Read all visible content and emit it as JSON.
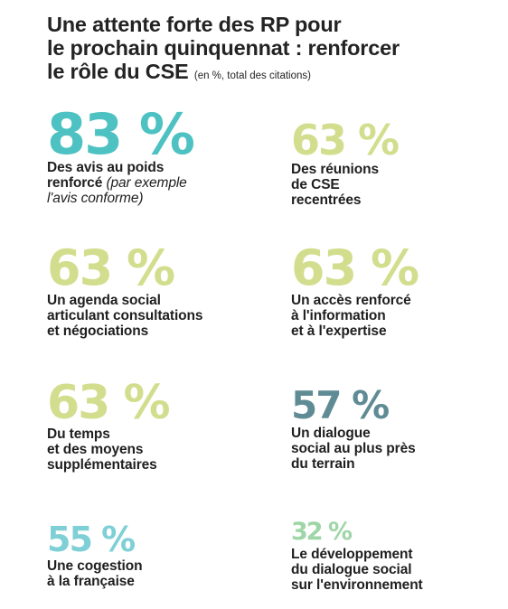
{
  "title": {
    "line1": "Une attente forte des RP pour",
    "line2": "le prochain quinquennat : renforcer",
    "line3": "le rôle du CSE",
    "note": "(en %, total des citations)"
  },
  "colors": {
    "teal": "#4ec2c2",
    "light_green": "#d2de8d",
    "slate": "#5f8b95",
    "light_teal": "#7fcfd6",
    "mint": "#9fd6a8",
    "text": "#1f1f1f"
  },
  "stats": [
    {
      "value": "83 %",
      "desc": "Des avis au poids\nrenforcé",
      "desc_italic": " (par exemple\nl'avis conforme)",
      "color": "teal"
    },
    {
      "value": "63 %",
      "desc": "Des réunions\nde CSE\nrecentrées",
      "color": "light_green"
    },
    {
      "value": "63 %",
      "desc": "Un agenda social\narticulant consultations\net négociations",
      "color": "light_green"
    },
    {
      "value": "63 %",
      "desc": "Un accès renforcé\nà l'information\net à l'expertise",
      "color": "light_green"
    },
    {
      "value": "63 %",
      "desc": "Du temps\net des moyens\nsupplémentaires",
      "color": "light_green"
    },
    {
      "value": "57 %",
      "desc": "Un dialogue\nsocial au plus près\ndu terrain",
      "color": "slate"
    },
    {
      "value": "55 %",
      "desc": "Une cogestion\nà la française",
      "color": "light_teal"
    },
    {
      "value": "32 %",
      "desc": "Le développement\ndu dialogue social\nsur l'environnement",
      "color": "mint"
    }
  ]
}
